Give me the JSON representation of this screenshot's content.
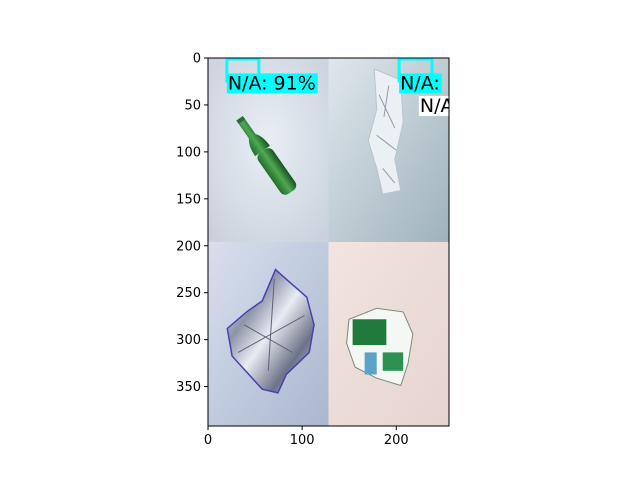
{
  "chart_data": {
    "type": "image",
    "xlim": [
      0,
      256
    ],
    "ylim": [
      392,
      0
    ],
    "x_ticks": [
      0,
      100,
      200
    ],
    "y_ticks": [
      0,
      50,
      100,
      150,
      200,
      250,
      300,
      350
    ],
    "panels": [
      {
        "x": [
          0,
          128
        ],
        "y": [
          0,
          196
        ],
        "content": "green glass bottle on light background"
      },
      {
        "x": [
          128,
          256
        ],
        "y": [
          0,
          196
        ],
        "content": "crumpled clear plastic bag"
      },
      {
        "x": [
          0,
          128
        ],
        "y": [
          196,
          392
        ],
        "content": "crumpled silver foil wrapper"
      },
      {
        "x": [
          128,
          256
        ],
        "y": [
          196,
          392
        ],
        "content": "crumpled green and white snack packet"
      }
    ],
    "detections": [
      {
        "label": "N/A: 91%",
        "label_x": 20,
        "label_y": 26,
        "box_x": [
          20,
          54
        ],
        "box_top": 0,
        "box_color": "#00ffff",
        "label_bg": "#00ffff"
      },
      {
        "label": "N/A:",
        "label_x": 203,
        "label_y": 26,
        "box_x": [
          203,
          238
        ],
        "box_top": 0,
        "box_color": "#00ffff",
        "label_bg": "#00ffff"
      },
      {
        "label": "N/A",
        "label_x": 224,
        "label_y": 50,
        "label_bg": "#ffffff"
      }
    ]
  }
}
